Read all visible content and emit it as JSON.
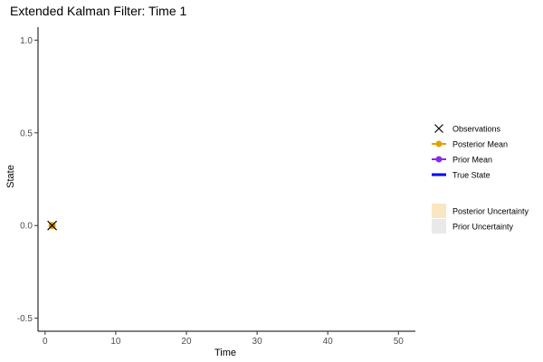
{
  "chart_data": {
    "type": "line",
    "title": "Extended Kalman Filter: Time 1",
    "xlabel": "Time",
    "ylabel": "State",
    "xlim": [
      -1,
      52.4
    ],
    "ylim": [
      -0.57,
      1.07
    ],
    "xticks": [
      0,
      10,
      20,
      30,
      40,
      50
    ],
    "yticks": [
      -0.5,
      0.0,
      0.5,
      1.0
    ],
    "ytick_labels": [
      "-0.5",
      "0.0",
      "0.5",
      "1.0"
    ],
    "grid": false,
    "legend_position": "right",
    "legend_items": [
      {
        "label": "Observations",
        "symbol": "x",
        "color": "#000000"
      },
      {
        "label": "Posterior Mean",
        "symbol": "line-point",
        "color": "#E69F00"
      },
      {
        "label": "Prior Mean",
        "symbol": "line-point",
        "color": "#8A2BE2"
      },
      {
        "label": "True State",
        "symbol": "line",
        "color": "#0000FF"
      }
    ],
    "legend_fill_items": [
      {
        "label": "Posterior Uncertainty",
        "color": "#FBE6C3"
      },
      {
        "label": "Prior Uncertainty",
        "color": "#E9E9E9"
      }
    ],
    "series": [
      {
        "name": "Observations",
        "x": [
          1
        ],
        "y": [
          0.0
        ],
        "color": "#000000"
      },
      {
        "name": "Posterior Mean",
        "x": [
          1
        ],
        "y": [
          0.0
        ],
        "color": "#E69F00"
      },
      {
        "name": "Prior Mean",
        "x": [
          1
        ],
        "y": [
          0.0
        ],
        "color": "#8A2BE2"
      },
      {
        "name": "True State",
        "x": [
          1
        ],
        "y": [
          0.0
        ],
        "color": "#0000FF"
      }
    ]
  }
}
